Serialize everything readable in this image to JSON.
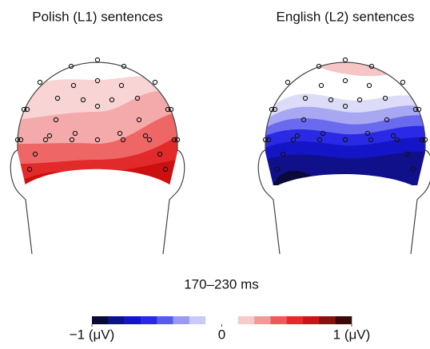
{
  "panels": [
    {
      "title": "Polish (L1) sentences"
    },
    {
      "title": "English (L2) sentences"
    }
  ],
  "time_window": "170–230 ms",
  "colorbar": {
    "lim": [
      -1,
      1
    ],
    "ticks": [
      {
        "value": -1,
        "label": "−1 (μV)"
      },
      {
        "value": 0,
        "label": "0"
      },
      {
        "value": 1,
        "label": "1 (μV)"
      }
    ],
    "colors": [
      "#0a0a3a",
      "#10108a",
      "#1515c8",
      "#2a2ae6",
      "#5a5aee",
      "#9a9af2",
      "#cacaf8",
      "#ffffff",
      "#ffffff",
      "#f8caca",
      "#f29a9a",
      "#ee5a5a",
      "#e62a2a",
      "#c81515",
      "#8a1010",
      "#3a0a0a"
    ]
  }
}
